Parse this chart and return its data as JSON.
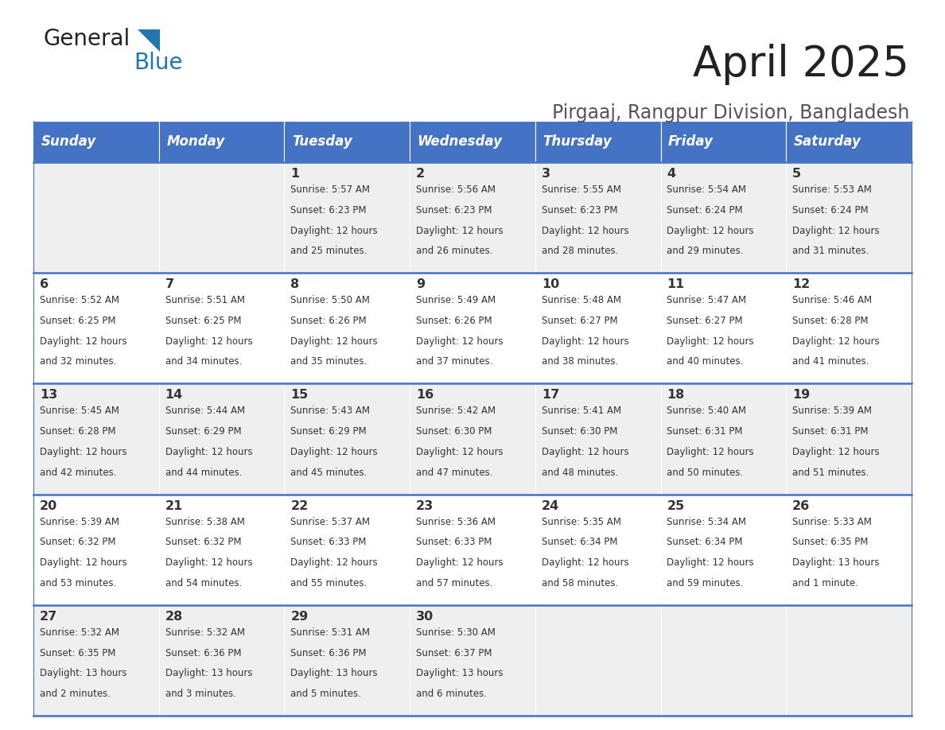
{
  "title": "April 2025",
  "subtitle": "Pirgaaj, Rangpur Division, Bangladesh",
  "days_of_week": [
    "Sunday",
    "Monday",
    "Tuesday",
    "Wednesday",
    "Thursday",
    "Friday",
    "Saturday"
  ],
  "header_bg": "#4472C4",
  "header_text_color": "#FFFFFF",
  "cell_bg_light": "#EFEFEF",
  "cell_bg_white": "#FFFFFF",
  "border_color": "#4472C4",
  "title_color": "#222222",
  "subtitle_color": "#555555",
  "cell_text_color": "#333333",
  "day_num_color": "#333333",
  "logo_general_color": "#222222",
  "logo_blue_color": "#2176AE",
  "logo_triangle_color": "#2176AE",
  "calendar": [
    [
      {
        "day": "",
        "sunrise": "",
        "sunset": "",
        "daylight": ""
      },
      {
        "day": "",
        "sunrise": "",
        "sunset": "",
        "daylight": ""
      },
      {
        "day": "1",
        "sunrise": "5:57 AM",
        "sunset": "6:23 PM",
        "daylight_h": "12 hours",
        "daylight_m": "and 25 minutes."
      },
      {
        "day": "2",
        "sunrise": "5:56 AM",
        "sunset": "6:23 PM",
        "daylight_h": "12 hours",
        "daylight_m": "and 26 minutes."
      },
      {
        "day": "3",
        "sunrise": "5:55 AM",
        "sunset": "6:23 PM",
        "daylight_h": "12 hours",
        "daylight_m": "and 28 minutes."
      },
      {
        "day": "4",
        "sunrise": "5:54 AM",
        "sunset": "6:24 PM",
        "daylight_h": "12 hours",
        "daylight_m": "and 29 minutes."
      },
      {
        "day": "5",
        "sunrise": "5:53 AM",
        "sunset": "6:24 PM",
        "daylight_h": "12 hours",
        "daylight_m": "and 31 minutes."
      }
    ],
    [
      {
        "day": "6",
        "sunrise": "5:52 AM",
        "sunset": "6:25 PM",
        "daylight_h": "12 hours",
        "daylight_m": "and 32 minutes."
      },
      {
        "day": "7",
        "sunrise": "5:51 AM",
        "sunset": "6:25 PM",
        "daylight_h": "12 hours",
        "daylight_m": "and 34 minutes."
      },
      {
        "day": "8",
        "sunrise": "5:50 AM",
        "sunset": "6:26 PM",
        "daylight_h": "12 hours",
        "daylight_m": "and 35 minutes."
      },
      {
        "day": "9",
        "sunrise": "5:49 AM",
        "sunset": "6:26 PM",
        "daylight_h": "12 hours",
        "daylight_m": "and 37 minutes."
      },
      {
        "day": "10",
        "sunrise": "5:48 AM",
        "sunset": "6:27 PM",
        "daylight_h": "12 hours",
        "daylight_m": "and 38 minutes."
      },
      {
        "day": "11",
        "sunrise": "5:47 AM",
        "sunset": "6:27 PM",
        "daylight_h": "12 hours",
        "daylight_m": "and 40 minutes."
      },
      {
        "day": "12",
        "sunrise": "5:46 AM",
        "sunset": "6:28 PM",
        "daylight_h": "12 hours",
        "daylight_m": "and 41 minutes."
      }
    ],
    [
      {
        "day": "13",
        "sunrise": "5:45 AM",
        "sunset": "6:28 PM",
        "daylight_h": "12 hours",
        "daylight_m": "and 42 minutes."
      },
      {
        "day": "14",
        "sunrise": "5:44 AM",
        "sunset": "6:29 PM",
        "daylight_h": "12 hours",
        "daylight_m": "and 44 minutes."
      },
      {
        "day": "15",
        "sunrise": "5:43 AM",
        "sunset": "6:29 PM",
        "daylight_h": "12 hours",
        "daylight_m": "and 45 minutes."
      },
      {
        "day": "16",
        "sunrise": "5:42 AM",
        "sunset": "6:30 PM",
        "daylight_h": "12 hours",
        "daylight_m": "and 47 minutes."
      },
      {
        "day": "17",
        "sunrise": "5:41 AM",
        "sunset": "6:30 PM",
        "daylight_h": "12 hours",
        "daylight_m": "and 48 minutes."
      },
      {
        "day": "18",
        "sunrise": "5:40 AM",
        "sunset": "6:31 PM",
        "daylight_h": "12 hours",
        "daylight_m": "and 50 minutes."
      },
      {
        "day": "19",
        "sunrise": "5:39 AM",
        "sunset": "6:31 PM",
        "daylight_h": "12 hours",
        "daylight_m": "and 51 minutes."
      }
    ],
    [
      {
        "day": "20",
        "sunrise": "5:39 AM",
        "sunset": "6:32 PM",
        "daylight_h": "12 hours",
        "daylight_m": "and 53 minutes."
      },
      {
        "day": "21",
        "sunrise": "5:38 AM",
        "sunset": "6:32 PM",
        "daylight_h": "12 hours",
        "daylight_m": "and 54 minutes."
      },
      {
        "day": "22",
        "sunrise": "5:37 AM",
        "sunset": "6:33 PM",
        "daylight_h": "12 hours",
        "daylight_m": "and 55 minutes."
      },
      {
        "day": "23",
        "sunrise": "5:36 AM",
        "sunset": "6:33 PM",
        "daylight_h": "12 hours",
        "daylight_m": "and 57 minutes."
      },
      {
        "day": "24",
        "sunrise": "5:35 AM",
        "sunset": "6:34 PM",
        "daylight_h": "12 hours",
        "daylight_m": "and 58 minutes."
      },
      {
        "day": "25",
        "sunrise": "5:34 AM",
        "sunset": "6:34 PM",
        "daylight_h": "12 hours",
        "daylight_m": "and 59 minutes."
      },
      {
        "day": "26",
        "sunrise": "5:33 AM",
        "sunset": "6:35 PM",
        "daylight_h": "13 hours",
        "daylight_m": "and 1 minute."
      }
    ],
    [
      {
        "day": "27",
        "sunrise": "5:32 AM",
        "sunset": "6:35 PM",
        "daylight_h": "13 hours",
        "daylight_m": "and 2 minutes."
      },
      {
        "day": "28",
        "sunrise": "5:32 AM",
        "sunset": "6:36 PM",
        "daylight_h": "13 hours",
        "daylight_m": "and 3 minutes."
      },
      {
        "day": "29",
        "sunrise": "5:31 AM",
        "sunset": "6:36 PM",
        "daylight_h": "13 hours",
        "daylight_m": "and 5 minutes."
      },
      {
        "day": "30",
        "sunrise": "5:30 AM",
        "sunset": "6:37 PM",
        "daylight_h": "13 hours",
        "daylight_m": "and 6 minutes."
      },
      {
        "day": "",
        "sunrise": "",
        "sunset": "",
        "daylight_h": "",
        "daylight_m": ""
      },
      {
        "day": "",
        "sunrise": "",
        "sunset": "",
        "daylight_h": "",
        "daylight_m": ""
      },
      {
        "day": "",
        "sunrise": "",
        "sunset": "",
        "daylight_h": "",
        "daylight_m": ""
      }
    ]
  ]
}
